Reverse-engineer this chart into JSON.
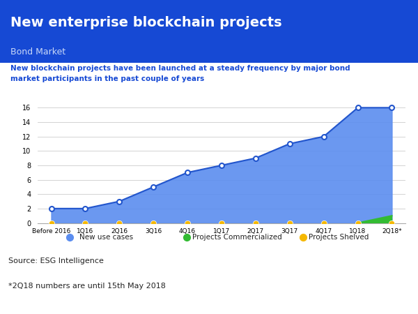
{
  "title": "New enterprise blockchain projects",
  "subtitle": "Bond Market",
  "description": "New blockchain projects have been launched at a steady frequency by major bond\nmarket participants in the past couple of years",
  "source": "Source: ESG Intelligence",
  "footnote": "*2Q18 numbers are until 15th May 2018",
  "categories": [
    "Before 2016",
    "1Q16",
    "2Q16",
    "3Q16",
    "4Q16",
    "1Q17",
    "2Q17",
    "3Q17",
    "4Q17",
    "1Q18",
    "2Q18*"
  ],
  "new_use_cases": [
    2,
    2,
    3,
    5,
    7,
    8,
    9,
    11,
    12,
    16,
    16
  ],
  "projects_commercialized": [
    0,
    0,
    0,
    0,
    0,
    0,
    0,
    0,
    0,
    0,
    1
  ],
  "header_bg": "#1649d4",
  "header_title_color": "#ffffff",
  "header_subtitle_color": "#c8d8f8",
  "description_color": "#1649d4",
  "area_color": "#5b8def",
  "line_color": "#2255cc",
  "commercialized_color": "#33bb33",
  "shelved_color": "#f5b800",
  "background_color": "#ffffff",
  "ylim": [
    0,
    17
  ],
  "yticks": [
    0,
    2,
    4,
    6,
    8,
    10,
    12,
    14,
    16
  ],
  "legend_labels": [
    "New use cases",
    "Projects Commercialized",
    "Projects Shelved"
  ]
}
